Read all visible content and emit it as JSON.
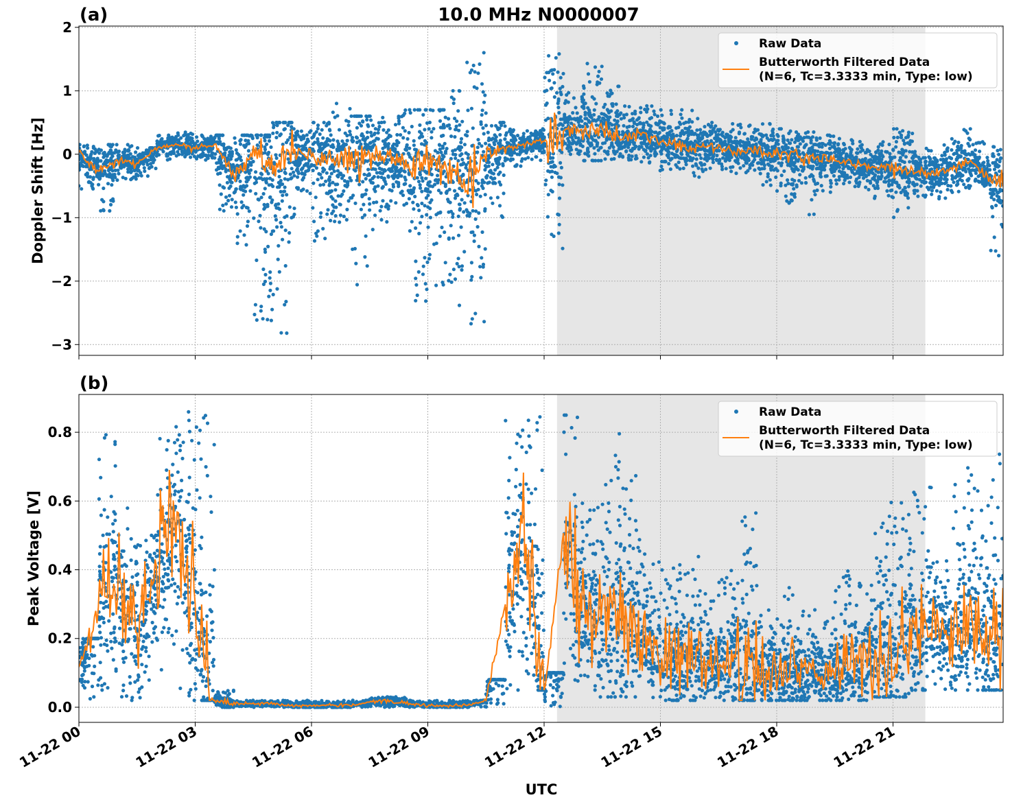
{
  "chart_data": [
    {
      "type": "scatter",
      "panel_label": "(a)",
      "title": "10.0 MHz N0000007",
      "xlabel": "",
      "ylabel": "Doppler Shift [Hz]",
      "ylim": [
        -3.17,
        2.02
      ],
      "yticks": [
        "−3",
        "−2",
        "−1",
        "0",
        "1",
        "2"
      ],
      "ytick_values": [
        -3,
        -2,
        -1,
        0,
        1,
        2
      ],
      "grid": true,
      "legend_placement": "top-right",
      "shaded_interval": [
        "11-22 12:20",
        "11-22 21:50"
      ],
      "x": [
        "00:00",
        "00:30",
        "01:00",
        "01:30",
        "02:00",
        "02:30",
        "03:00",
        "03:30",
        "04:00",
        "04:30",
        "05:00",
        "05:30",
        "06:00",
        "06:30",
        "07:00",
        "07:30",
        "08:00",
        "08:30",
        "09:00",
        "09:30",
        "10:00",
        "10:30",
        "11:00",
        "11:30",
        "12:00",
        "12:30",
        "13:00",
        "13:30",
        "14:00",
        "14:30",
        "15:00",
        "15:30",
        "16:00",
        "16:30",
        "17:00",
        "17:30",
        "18:00",
        "18:30",
        "19:00",
        "19:30",
        "20:00",
        "20:30",
        "21:00",
        "21:30",
        "22:00",
        "22:30",
        "23:00",
        "23:30"
      ],
      "series": [
        {
          "name": "Raw Data",
          "color": "#1f77b4",
          "min": [
            -0.6,
            -0.9,
            -0.4,
            -0.35,
            -0.1,
            -0.05,
            -0.1,
            -1.0,
            -1.6,
            -2.9,
            -2.9,
            -1.0,
            -1.5,
            -1.3,
            -2.2,
            -1.3,
            -0.8,
            -2.4,
            -2.2,
            -2.4,
            -2.8,
            -1.0,
            -0.2,
            -0.1,
            -1.5,
            0.0,
            -0.1,
            -0.2,
            -0.2,
            -0.3,
            -0.3,
            -0.4,
            -0.3,
            -0.3,
            -0.3,
            -0.5,
            -0.8,
            -1.0,
            -0.6,
            -0.5,
            -0.6,
            -0.7,
            -1.0,
            -0.7,
            -0.7,
            -0.6,
            -0.5,
            -1.65
          ],
          "max": [
            0.15,
            0.15,
            0.15,
            0.1,
            0.3,
            0.35,
            0.3,
            0.3,
            0.3,
            0.3,
            0.5,
            0.4,
            0.5,
            0.8,
            0.6,
            0.6,
            0.7,
            0.7,
            0.7,
            1.0,
            1.6,
            0.5,
            0.4,
            0.4,
            1.8,
            1.0,
            1.45,
            1.1,
            0.8,
            0.8,
            0.7,
            0.7,
            0.5,
            0.5,
            0.5,
            0.5,
            0.4,
            0.35,
            0.3,
            0.3,
            0.2,
            0.2,
            0.4,
            0.1,
            0.2,
            0.4,
            0.2,
            0.2
          ]
        },
        {
          "name": "Butterworth Filtered Data\n(N=6, Tc=3.3333 min, Type: low)",
          "color": "#ff7f0e",
          "values": [
            0.0,
            -0.25,
            -0.1,
            -0.15,
            0.1,
            0.15,
            0.1,
            0.15,
            -0.3,
            0.0,
            -0.3,
            0.0,
            0.0,
            -0.05,
            -0.05,
            0.0,
            0.0,
            -0.2,
            -0.1,
            -0.2,
            -0.3,
            0.0,
            0.1,
            0.15,
            0.2,
            0.4,
            0.35,
            0.4,
            0.25,
            0.3,
            0.2,
            0.15,
            0.1,
            0.1,
            0.05,
            0.05,
            0.0,
            0.0,
            -0.05,
            -0.1,
            -0.15,
            -0.2,
            -0.2,
            -0.25,
            -0.3,
            -0.2,
            -0.1,
            -0.4
          ]
        }
      ]
    },
    {
      "type": "scatter",
      "panel_label": "(b)",
      "xlabel": "UTC",
      "ylabel": "Peak Voltage [V]",
      "ylim": [
        -0.044,
        0.91
      ],
      "yticks": [
        "0.0",
        "0.2",
        "0.4",
        "0.6",
        "0.8"
      ],
      "ytick_values": [
        0,
        0.2,
        0.4,
        0.6,
        0.8
      ],
      "xticks": [
        "11-22 00",
        "11-22 03",
        "11-22 06",
        "11-22 09",
        "11-22 12",
        "11-22 15",
        "11-22 18",
        "11-22 21"
      ],
      "grid": true,
      "legend_placement": "top-right",
      "shaded_interval": [
        "11-22 12:20",
        "11-22 21:50"
      ],
      "series": [
        {
          "name": "Raw Data",
          "color": "#1f77b4",
          "min": [
            0.02,
            0.05,
            0.02,
            0.02,
            0.02,
            0.02,
            0.02,
            0.0,
            0.0,
            0.0,
            0.0,
            0.0,
            0.0,
            0.0,
            0.0,
            0.0,
            0.0,
            0.0,
            0.0,
            0.0,
            0.0,
            0.0,
            0.05,
            0.05,
            0.0,
            0.02,
            0.03,
            0.03,
            0.03,
            0.02,
            0.02,
            0.02,
            0.02,
            0.02,
            0.02,
            0.02,
            0.02,
            0.02,
            0.02,
            0.02,
            0.02,
            0.03,
            0.03,
            0.05,
            0.05,
            0.05,
            0.05,
            0.05
          ],
          "max": [
            0.2,
            0.8,
            0.6,
            0.5,
            0.8,
            0.86,
            0.85,
            0.05,
            0.02,
            0.02,
            0.02,
            0.02,
            0.02,
            0.02,
            0.02,
            0.03,
            0.03,
            0.02,
            0.02,
            0.02,
            0.02,
            0.08,
            0.85,
            0.86,
            0.1,
            0.85,
            0.6,
            0.8,
            0.7,
            0.45,
            0.45,
            0.45,
            0.35,
            0.4,
            0.6,
            0.3,
            0.35,
            0.3,
            0.3,
            0.4,
            0.4,
            0.6,
            0.6,
            0.65,
            0.45,
            0.7,
            0.7,
            0.75
          ]
        },
        {
          "name": "Butterworth Filtered Data\n(N=6, Tc=3.3333 min, Type: low)",
          "color": "#ff7f0e",
          "values": [
            0.1,
            0.3,
            0.35,
            0.2,
            0.4,
            0.55,
            0.3,
            0.02,
            0.01,
            0.01,
            0.01,
            0.005,
            0.005,
            0.005,
            0.005,
            0.015,
            0.02,
            0.01,
            0.005,
            0.005,
            0.005,
            0.02,
            0.3,
            0.5,
            0.03,
            0.5,
            0.3,
            0.25,
            0.25,
            0.2,
            0.15,
            0.15,
            0.12,
            0.12,
            0.15,
            0.1,
            0.1,
            0.1,
            0.1,
            0.1,
            0.12,
            0.15,
            0.15,
            0.2,
            0.25,
            0.2,
            0.25,
            0.2
          ]
        }
      ]
    }
  ],
  "legend": {
    "raw_label": "Raw Data",
    "filtered_line1": "Butterworth Filtered Data",
    "filtered_line2": "(N=6, Tc=3.3333 min, Type: low)"
  }
}
